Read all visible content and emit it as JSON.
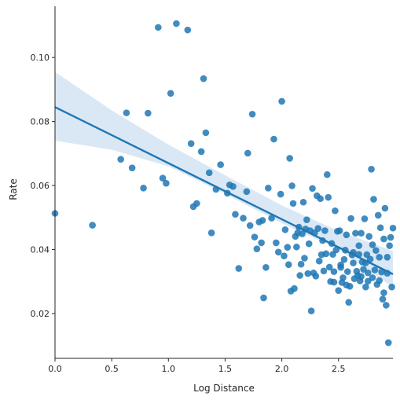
{
  "chart_data": {
    "type": "scatter",
    "title": "",
    "xlabel": "Log Distance",
    "ylabel": "Rate",
    "xlim": [
      0,
      2.98
    ],
    "ylim": [
      0.006,
      0.116
    ],
    "xticks": [
      0,
      0.5,
      1.0,
      1.5,
      2.0,
      2.5
    ],
    "xtick_labels": [
      "0.0",
      "0.5",
      "1.0",
      "1.5",
      "2.0",
      "2.5"
    ],
    "yticks": [
      0.02,
      0.04,
      0.06,
      0.08,
      0.1
    ],
    "ytick_labels": [
      "0.02",
      "0.04",
      "0.06",
      "0.08",
      "0.10"
    ],
    "grid": false,
    "legend": "none",
    "colors": {
      "points": "#1f77b4",
      "line": "#1f77b4",
      "band": "#c6dbef"
    },
    "regression": {
      "x": [
        0,
        2.98
      ],
      "y": [
        0.0845,
        0.0323
      ],
      "ci_x": [
        0,
        0.5,
        1.0,
        1.5,
        2.0,
        2.5,
        2.98
      ],
      "ci_upper": [
        0.0955,
        0.0835,
        0.0728,
        0.0632,
        0.0538,
        0.0458,
        0.0395
      ],
      "ci_lower": [
        0.074,
        0.0712,
        0.066,
        0.0574,
        0.0482,
        0.0401,
        0.0282
      ]
    },
    "points": [
      [
        0.0,
        0.0513
      ],
      [
        0.33,
        0.0476
      ],
      [
        0.58,
        0.0682
      ],
      [
        0.63,
        0.0827
      ],
      [
        0.68,
        0.0655
      ],
      [
        0.78,
        0.0592
      ],
      [
        0.82,
        0.0826
      ],
      [
        0.91,
        0.1094
      ],
      [
        0.95,
        0.0623
      ],
      [
        0.98,
        0.0607
      ],
      [
        1.02,
        0.0888
      ],
      [
        1.07,
        0.1106
      ],
      [
        1.17,
        0.1086
      ],
      [
        1.2,
        0.0731
      ],
      [
        1.22,
        0.0534
      ],
      [
        1.25,
        0.0544
      ],
      [
        1.29,
        0.0706
      ],
      [
        1.31,
        0.0934
      ],
      [
        1.33,
        0.0765
      ],
      [
        1.36,
        0.064
      ],
      [
        1.38,
        0.0452
      ],
      [
        1.42,
        0.0588
      ],
      [
        1.46,
        0.0665
      ],
      [
        1.52,
        0.0576
      ],
      [
        1.54,
        0.0602
      ],
      [
        1.57,
        0.0597
      ],
      [
        1.59,
        0.051
      ],
      [
        1.62,
        0.0341
      ],
      [
        1.66,
        0.0498
      ],
      [
        1.69,
        0.0581
      ],
      [
        1.7,
        0.0701
      ],
      [
        1.72,
        0.0475
      ],
      [
        1.74,
        0.0823
      ],
      [
        1.76,
        0.0439
      ],
      [
        1.78,
        0.0402
      ],
      [
        1.8,
        0.0486
      ],
      [
        1.82,
        0.0421
      ],
      [
        1.83,
        0.0491
      ],
      [
        1.84,
        0.0249
      ],
      [
        1.86,
        0.0344
      ],
      [
        1.88,
        0.0592
      ],
      [
        1.91,
        0.0498
      ],
      [
        1.93,
        0.0745
      ],
      [
        1.95,
        0.0421
      ],
      [
        1.97,
        0.0392
      ],
      [
        1.99,
        0.0573
      ],
      [
        2.0,
        0.0863
      ],
      [
        2.02,
        0.038
      ],
      [
        2.03,
        0.0462
      ],
      [
        2.05,
        0.0407
      ],
      [
        2.06,
        0.0353
      ],
      [
        2.07,
        0.0685
      ],
      [
        2.08,
        0.027
      ],
      [
        2.09,
        0.0599
      ],
      [
        2.1,
        0.0544
      ],
      [
        2.11,
        0.0278
      ],
      [
        2.12,
        0.0441
      ],
      [
        2.13,
        0.0408
      ],
      [
        2.14,
        0.0452
      ],
      [
        2.15,
        0.047
      ],
      [
        2.16,
        0.0319
      ],
      [
        2.17,
        0.0354
      ],
      [
        2.18,
        0.0449
      ],
      [
        2.19,
        0.0548
      ],
      [
        2.2,
        0.0373
      ],
      [
        2.21,
        0.0464
      ],
      [
        2.22,
        0.0493
      ],
      [
        2.23,
        0.0325
      ],
      [
        2.24,
        0.0418
      ],
      [
        2.25,
        0.0459
      ],
      [
        2.26,
        0.0208
      ],
      [
        2.27,
        0.0591
      ],
      [
        2.28,
        0.0327
      ],
      [
        2.29,
        0.0452
      ],
      [
        2.3,
        0.0317
      ],
      [
        2.31,
        0.0568
      ],
      [
        2.32,
        0.0466
      ],
      [
        2.33,
        0.0364
      ],
      [
        2.34,
        0.0559
      ],
      [
        2.35,
        0.0384
      ],
      [
        2.36,
        0.0428
      ],
      [
        2.37,
        0.0333
      ],
      [
        2.38,
        0.0459
      ],
      [
        2.39,
        0.0387
      ],
      [
        2.4,
        0.0634
      ],
      [
        2.41,
        0.0563
      ],
      [
        2.42,
        0.0345
      ],
      [
        2.43,
        0.03
      ],
      [
        2.44,
        0.0419
      ],
      [
        2.45,
        0.0385
      ],
      [
        2.46,
        0.0331
      ],
      [
        2.47,
        0.0521
      ],
      [
        2.48,
        0.0399
      ],
      [
        2.49,
        0.0457
      ],
      [
        2.5,
        0.0272
      ],
      [
        2.51,
        0.0459
      ],
      [
        2.52,
        0.0352
      ],
      [
        2.53,
        0.0297
      ],
      [
        2.54,
        0.0312
      ],
      [
        2.55,
        0.0369
      ],
      [
        2.56,
        0.0398
      ],
      [
        2.57,
        0.0446
      ],
      [
        2.58,
        0.0331
      ],
      [
        2.59,
        0.0235
      ],
      [
        2.6,
        0.0285
      ],
      [
        2.61,
        0.0497
      ],
      [
        2.62,
        0.0383
      ],
      [
        2.63,
        0.0358
      ],
      [
        2.64,
        0.0309
      ],
      [
        2.65,
        0.0451
      ],
      [
        2.66,
        0.0332
      ],
      [
        2.67,
        0.0319
      ],
      [
        2.68,
        0.0385
      ],
      [
        2.69,
        0.0302
      ],
      [
        2.7,
        0.0451
      ],
      [
        2.71,
        0.0361
      ],
      [
        2.72,
        0.0338
      ],
      [
        2.73,
        0.0496
      ],
      [
        2.74,
        0.0283
      ],
      [
        2.75,
        0.0384
      ],
      [
        2.76,
        0.0327
      ],
      [
        2.77,
        0.0441
      ],
      [
        2.78,
        0.037
      ],
      [
        2.79,
        0.0651
      ],
      [
        2.8,
        0.0312
      ],
      [
        2.81,
        0.0557
      ],
      [
        2.82,
        0.0336
      ],
      [
        2.83,
        0.0397
      ],
      [
        2.84,
        0.0291
      ],
      [
        2.85,
        0.0507
      ],
      [
        2.86,
        0.0376
      ],
      [
        2.87,
        0.0468
      ],
      [
        2.88,
        0.033
      ],
      [
        2.89,
        0.0245
      ],
      [
        2.9,
        0.0433
      ],
      [
        2.91,
        0.0529
      ],
      [
        2.92,
        0.0226
      ],
      [
        2.93,
        0.0376
      ],
      [
        2.94,
        0.0109
      ],
      [
        2.95,
        0.0412
      ],
      [
        2.96,
        0.0438
      ],
      [
        2.97,
        0.0283
      ],
      [
        2.98,
        0.0467
      ],
      [
        2.9,
        0.0265
      ],
      [
        2.86,
        0.0303
      ],
      [
        2.8,
        0.0415
      ],
      [
        2.74,
        0.0358
      ],
      [
        2.68,
        0.0412
      ],
      [
        2.63,
        0.0391
      ],
      [
        2.57,
        0.0289
      ],
      [
        2.52,
        0.0344
      ],
      [
        2.46,
        0.0298
      ],
      [
        2.7,
        0.0316
      ],
      [
        2.76,
        0.0301
      ],
      [
        2.93,
        0.0326
      ]
    ]
  }
}
